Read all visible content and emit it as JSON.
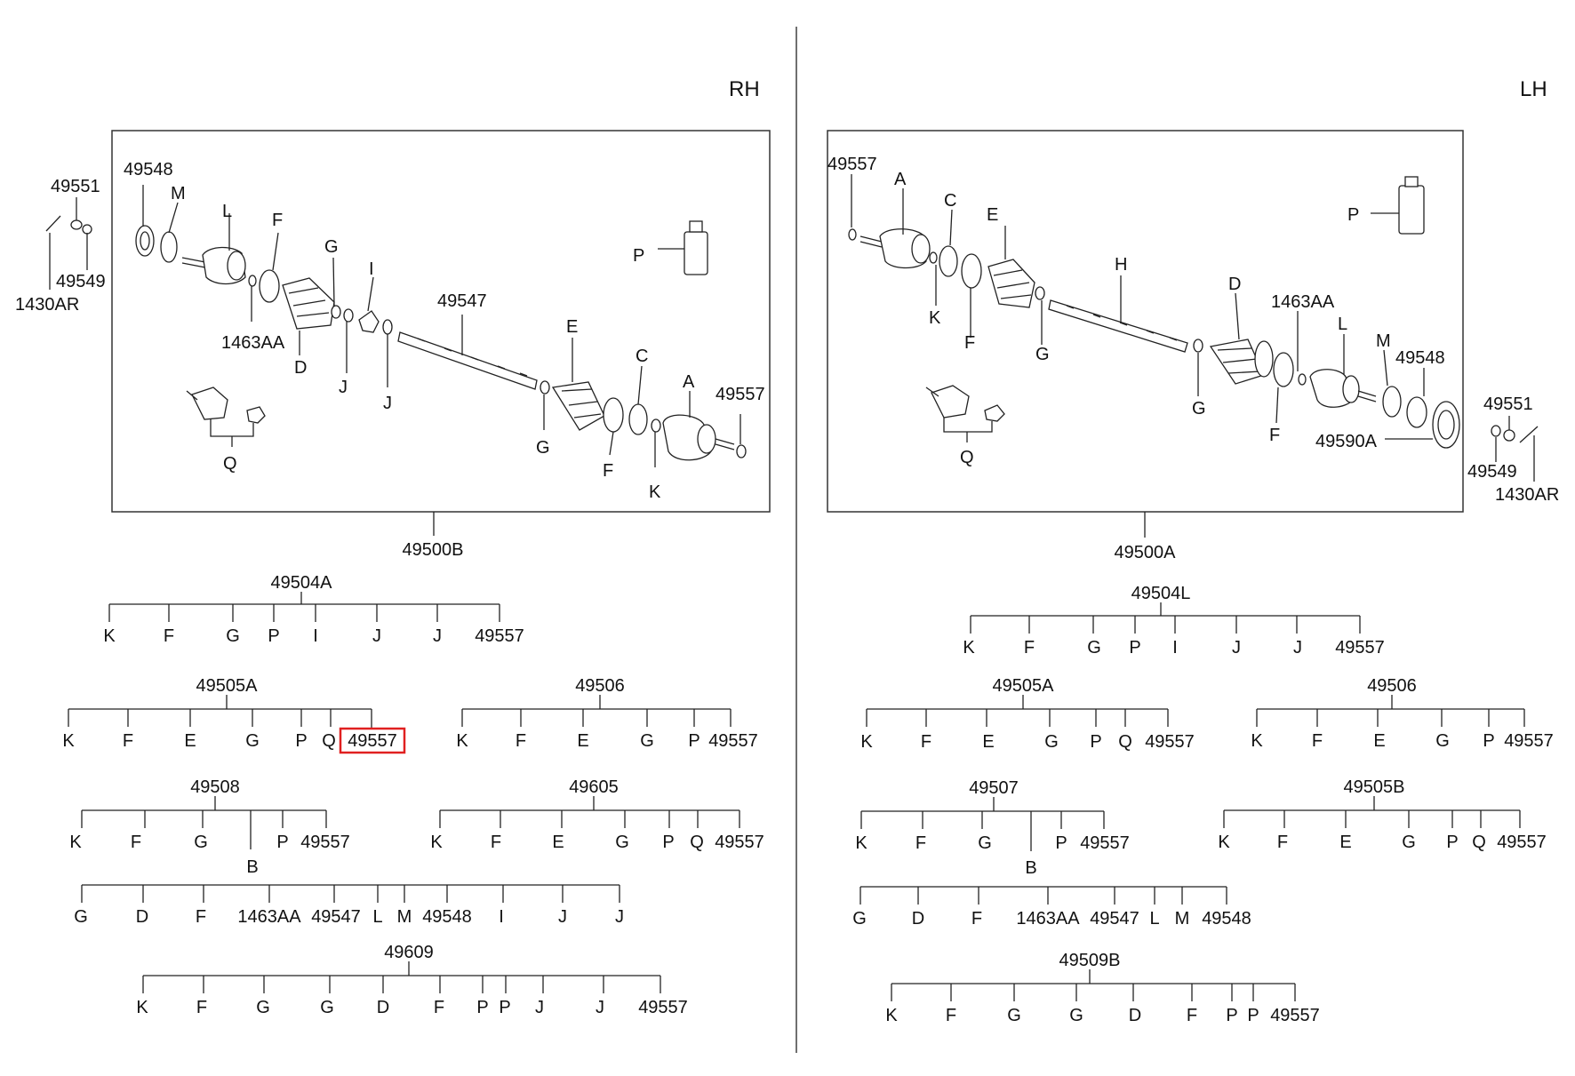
{
  "accent_color": "#e02020",
  "highlight_ref": "rh.trees.1.items.6",
  "rh": {
    "side_label": "RH",
    "assembly": "49500B",
    "callouts": [
      {
        "id": "49548",
        "label": "49548"
      },
      {
        "id": "m",
        "label": "M"
      },
      {
        "id": "l",
        "label": "L"
      },
      {
        "id": "f1",
        "label": "F"
      },
      {
        "id": "g1",
        "label": "G"
      },
      {
        "id": "i",
        "label": "I"
      },
      {
        "id": "49547",
        "label": "49547"
      },
      {
        "id": "e",
        "label": "E"
      },
      {
        "id": "c",
        "label": "C"
      },
      {
        "id": "a",
        "label": "A"
      },
      {
        "id": "49557",
        "label": "49557"
      },
      {
        "id": "p",
        "label": "P"
      },
      {
        "id": "1463aa",
        "label": "1463AA"
      },
      {
        "id": "d",
        "label": "D"
      },
      {
        "id": "j1",
        "label": "J"
      },
      {
        "id": "j2",
        "label": "J"
      },
      {
        "id": "g2",
        "label": "G"
      },
      {
        "id": "f2",
        "label": "F"
      },
      {
        "id": "k",
        "label": "K"
      },
      {
        "id": "q",
        "label": "Q"
      },
      {
        "id": "49551",
        "label": "49551"
      },
      {
        "id": "49549",
        "label": "49549"
      },
      {
        "id": "1430ar",
        "label": "1430AR"
      }
    ],
    "trees": [
      {
        "code": "49504A",
        "items": [
          "K",
          "F",
          "G",
          "P",
          "I",
          "J",
          "J",
          "49557"
        ]
      },
      {
        "code": "49505A",
        "items": [
          "K",
          "F",
          "E",
          "G",
          "P",
          "Q",
          "49557"
        ]
      },
      {
        "code": "49506",
        "items": [
          "K",
          "F",
          "E",
          "G",
          "P",
          "49557"
        ]
      },
      {
        "code": "49508",
        "items": [
          "K",
          "F",
          "G",
          "B",
          "P",
          "49557"
        ]
      },
      {
        "code": "49605",
        "items": [
          "K",
          "F",
          "E",
          "G",
          "P",
          "Q",
          "49557"
        ]
      },
      {
        "code": "B",
        "items": [
          "G",
          "D",
          "F",
          "1463AA",
          "49547",
          "L",
          "M",
          "49548",
          "I",
          "J",
          "J"
        ]
      },
      {
        "code": "49609",
        "items": [
          "K",
          "F",
          "G",
          "G",
          "D",
          "F",
          "P",
          "P",
          "J",
          "J",
          "49557"
        ]
      }
    ]
  },
  "lh": {
    "side_label": "LH",
    "assembly": "49500A",
    "callouts": [
      {
        "id": "49557",
        "label": "49557"
      },
      {
        "id": "a",
        "label": "A"
      },
      {
        "id": "c",
        "label": "C"
      },
      {
        "id": "e",
        "label": "E"
      },
      {
        "id": "h",
        "label": "H"
      },
      {
        "id": "d",
        "label": "D"
      },
      {
        "id": "1463aa",
        "label": "1463AA"
      },
      {
        "id": "l",
        "label": "L"
      },
      {
        "id": "m",
        "label": "M"
      },
      {
        "id": "49548",
        "label": "49548"
      },
      {
        "id": "p",
        "label": "P"
      },
      {
        "id": "k",
        "label": "K"
      },
      {
        "id": "f1",
        "label": "F"
      },
      {
        "id": "g1",
        "label": "G"
      },
      {
        "id": "g2",
        "label": "G"
      },
      {
        "id": "f2",
        "label": "F"
      },
      {
        "id": "49590a",
        "label": "49590A"
      },
      {
        "id": "q",
        "label": "Q"
      },
      {
        "id": "49551",
        "label": "49551"
      },
      {
        "id": "49549",
        "label": "49549"
      },
      {
        "id": "1430ar",
        "label": "1430AR"
      }
    ],
    "trees": [
      {
        "code": "49504L",
        "items": [
          "K",
          "F",
          "G",
          "P",
          "I",
          "J",
          "J",
          "49557"
        ]
      },
      {
        "code": "49505A",
        "items": [
          "K",
          "F",
          "E",
          "G",
          "P",
          "Q",
          "49557"
        ]
      },
      {
        "code": "49506",
        "items": [
          "K",
          "F",
          "E",
          "G",
          "P",
          "49557"
        ]
      },
      {
        "code": "49507",
        "items": [
          "K",
          "F",
          "G",
          "B",
          "P",
          "49557"
        ]
      },
      {
        "code": "49505B",
        "items": [
          "K",
          "F",
          "E",
          "G",
          "P",
          "Q",
          "49557"
        ]
      },
      {
        "code": "B",
        "items": [
          "G",
          "D",
          "F",
          "1463AA",
          "49547",
          "L",
          "M",
          "49548"
        ]
      },
      {
        "code": "49509B",
        "items": [
          "K",
          "F",
          "G",
          "G",
          "D",
          "F",
          "P",
          "P",
          "49557"
        ]
      }
    ]
  }
}
